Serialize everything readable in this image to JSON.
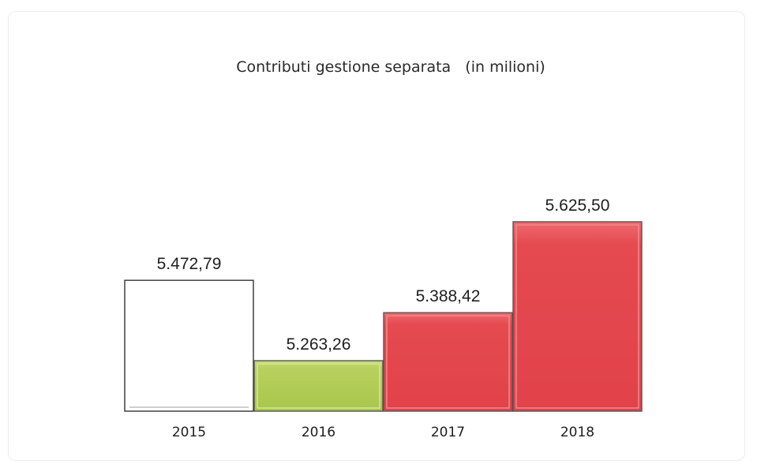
{
  "chart_data": {
    "type": "bar",
    "title": "Contributi gestione separata   (in milioni)",
    "categories": [
      "2015",
      "2016",
      "2017",
      "2018"
    ],
    "values": [
      5472.79,
      5263.26,
      5388.42,
      5625.5
    ],
    "value_labels": [
      "5.472,79",
      "5.263,26",
      "5.388,42",
      "5.625,50"
    ],
    "colors": [
      "#ffffff",
      "#b5cf59",
      "#e2434a",
      "#e8474c"
    ],
    "xlabel": "",
    "ylabel": "",
    "grid": false,
    "legend": "none"
  }
}
